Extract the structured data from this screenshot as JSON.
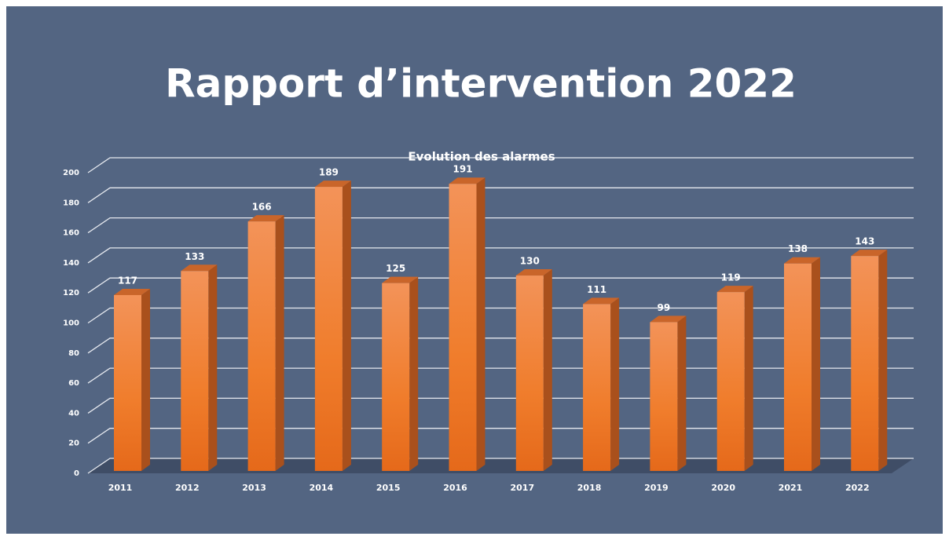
{
  "chart_data": {
    "type": "bar",
    "slide_title": "Rapport d’intervention 2022",
    "title": "Evolution des alarmes",
    "categories": [
      "2011",
      "2012",
      "2013",
      "2014",
      "2015",
      "2016",
      "2017",
      "2018",
      "2019",
      "2020",
      "2021",
      "2022"
    ],
    "values": [
      117,
      133,
      166,
      189,
      125,
      191,
      130,
      111,
      99,
      119,
      138,
      143
    ],
    "color": "#f07d2c",
    "ylim": [
      0,
      200
    ],
    "yticks": [
      0,
      20,
      40,
      60,
      80,
      100,
      120,
      140,
      160,
      180,
      200
    ],
    "grid": true
  }
}
